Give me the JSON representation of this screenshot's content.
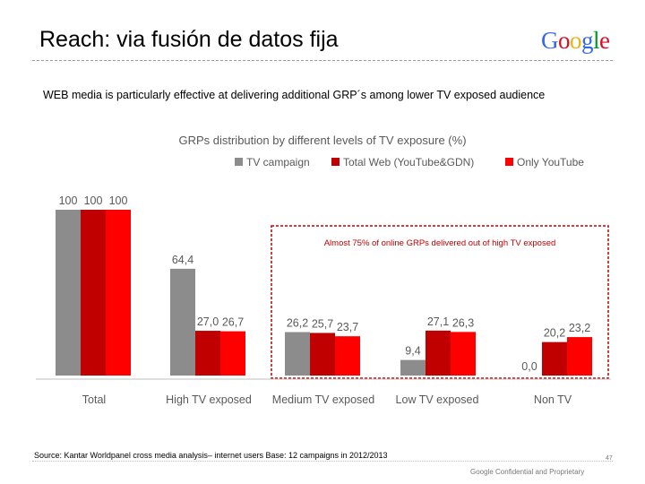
{
  "slide": {
    "title": "Reach: via fusión de datos fija",
    "subtitle": "WEB media is particularly effective at delivering additional GRP´s among lower TV exposed audience",
    "source": "Source: Kantar Worldpanel cross media analysis– internet users  Base: 12 campaigns in 2012/2013",
    "page_number": "47",
    "confidential": "Google Confidential and Proprietary"
  },
  "logo": {
    "text": "Google",
    "letters": [
      {
        "char": "G",
        "color": "#3369e8"
      },
      {
        "char": "o",
        "color": "#d50f25"
      },
      {
        "char": "o",
        "color": "#eeb211"
      },
      {
        "char": "g",
        "color": "#3369e8"
      },
      {
        "char": "l",
        "color": "#009925"
      },
      {
        "char": "e",
        "color": "#d50f25"
      }
    ]
  },
  "chart_data": {
    "type": "bar",
    "title": "GRPs distribution by different levels of TV exposure (%)",
    "categories": [
      "Total",
      "High TV exposed",
      "Medium TV exposed",
      "Low TV exposed",
      "Non TV"
    ],
    "series": [
      {
        "name": "TV campaign",
        "color": "#8c8c8c",
        "values": [
          100,
          64.4,
          26.2,
          9.4,
          0.0
        ],
        "labels": [
          "100",
          "64,4",
          "26,2",
          "9,4",
          "0,0"
        ]
      },
      {
        "name": "Total Web (YouTube&GDN)",
        "color": "#c00000",
        "values": [
          100,
          27.0,
          25.7,
          27.1,
          20.2
        ],
        "labels": [
          "100",
          "27,0",
          "25,7",
          "27,1",
          "20,2"
        ]
      },
      {
        "name": "Only YouTube",
        "color": "#ff0000",
        "values": [
          100,
          26.7,
          23.7,
          26.3,
          23.2
        ],
        "labels": [
          "100",
          "26,7",
          "23,7",
          "26,3",
          "23,2"
        ]
      }
    ],
    "ylim": [
      0,
      100
    ],
    "xlabel": "",
    "ylabel": "",
    "legend_position": "top",
    "grid": false,
    "annotation": "Almost 75% of online GRPs  delivered out of high TV exposed"
  }
}
